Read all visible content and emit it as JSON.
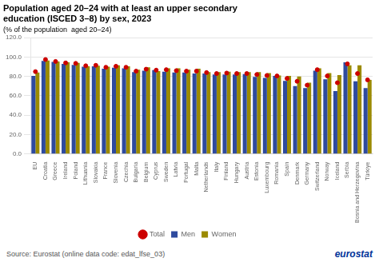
{
  "chart_data": {
    "type": "bar",
    "title": [
      "Population aged 20–24 with at least an upper secondary",
      "education (ISCED 3–8) by sex, 2023"
    ],
    "subtitle": "(% of the population  aged 20–24)",
    "annotations": [
      "Source: Eurostat (online data code: edat_lfse_03)",
      "eurostat"
    ],
    "categories": [
      "EU",
      "Croatia",
      "Greece",
      "Ireland",
      "Poland",
      "Lithuania",
      "Slovakia",
      "France",
      "Slovenia",
      "Czechia",
      "Bulgaria",
      "Belgium",
      "Cyprus",
      "Sweden",
      "Latvia",
      "Portugal",
      "Malta",
      "Netherlands",
      "Italy",
      "Finland",
      "Hungary",
      "Austria",
      "Estonia",
      "Luxembourg",
      "Romania",
      "Spain",
      "Denmark",
      "Germany",
      "Switzerland",
      "Norway",
      "Iceland",
      "Serbia",
      "Bosnia and Herzegovina",
      "Türkiye"
    ],
    "series": [
      {
        "name": "Men",
        "type": "bar",
        "color": "#2E4A9E",
        "values": [
          80.5,
          96.0,
          95.0,
          93.0,
          92.0,
          90.0,
          90.5,
          88.0,
          89.0,
          88.5,
          84.5,
          86.0,
          86.5,
          85.0,
          84.0,
          84.0,
          83.0,
          83.0,
          82.0,
          82.0,
          82.0,
          82.5,
          79.5,
          78.5,
          80.5,
          75.5,
          70.0,
          68.0,
          86.0,
          77.0,
          65.0,
          94.5,
          75.0,
          68.0
        ]
      },
      {
        "name": "Women",
        "type": "bar",
        "color": "#9B8A00",
        "values": [
          84.0,
          96.5,
          95.5,
          94.5,
          94.0,
          90.5,
          91.0,
          90.0,
          91.5,
          90.5,
          87.0,
          89.5,
          85.5,
          88.5,
          88.5,
          87.0,
          88.0,
          84.5,
          84.5,
          85.0,
          84.5,
          84.5,
          84.5,
          83.5,
          81.0,
          80.5,
          80.0,
          73.5,
          88.5,
          83.5,
          81.5,
          91.5,
          91.5,
          76.5
        ]
      },
      {
        "name": "Total",
        "type": "scatter",
        "marker": "circle",
        "color": "#CC0000",
        "values": [
          85.0,
          97.5,
          95.5,
          94.0,
          93.5,
          91.0,
          91.5,
          89.5,
          90.5,
          89.5,
          85.5,
          87.5,
          86.5,
          87.0,
          86.0,
          85.5,
          85.5,
          84.0,
          83.0,
          83.5,
          83.0,
          83.0,
          82.0,
          81.0,
          80.5,
          78.0,
          75.0,
          71.0,
          87.0,
          80.5,
          73.5,
          93.0,
          83.0,
          76.5
        ]
      }
    ],
    "ylim": [
      0,
      120
    ],
    "yticks": [
      {
        "value": 0,
        "label": "0.0"
      },
      {
        "value": 20,
        "label": "20.0"
      },
      {
        "value": 40,
        "label": "40.0"
      },
      {
        "value": 60,
        "label": "60.0"
      },
      {
        "value": 80,
        "label": "80.0"
      },
      {
        "value": 100,
        "label": "100.0"
      },
      {
        "value": 120,
        "label": "120.0"
      }
    ],
    "grid": true,
    "legend": "bottom"
  }
}
